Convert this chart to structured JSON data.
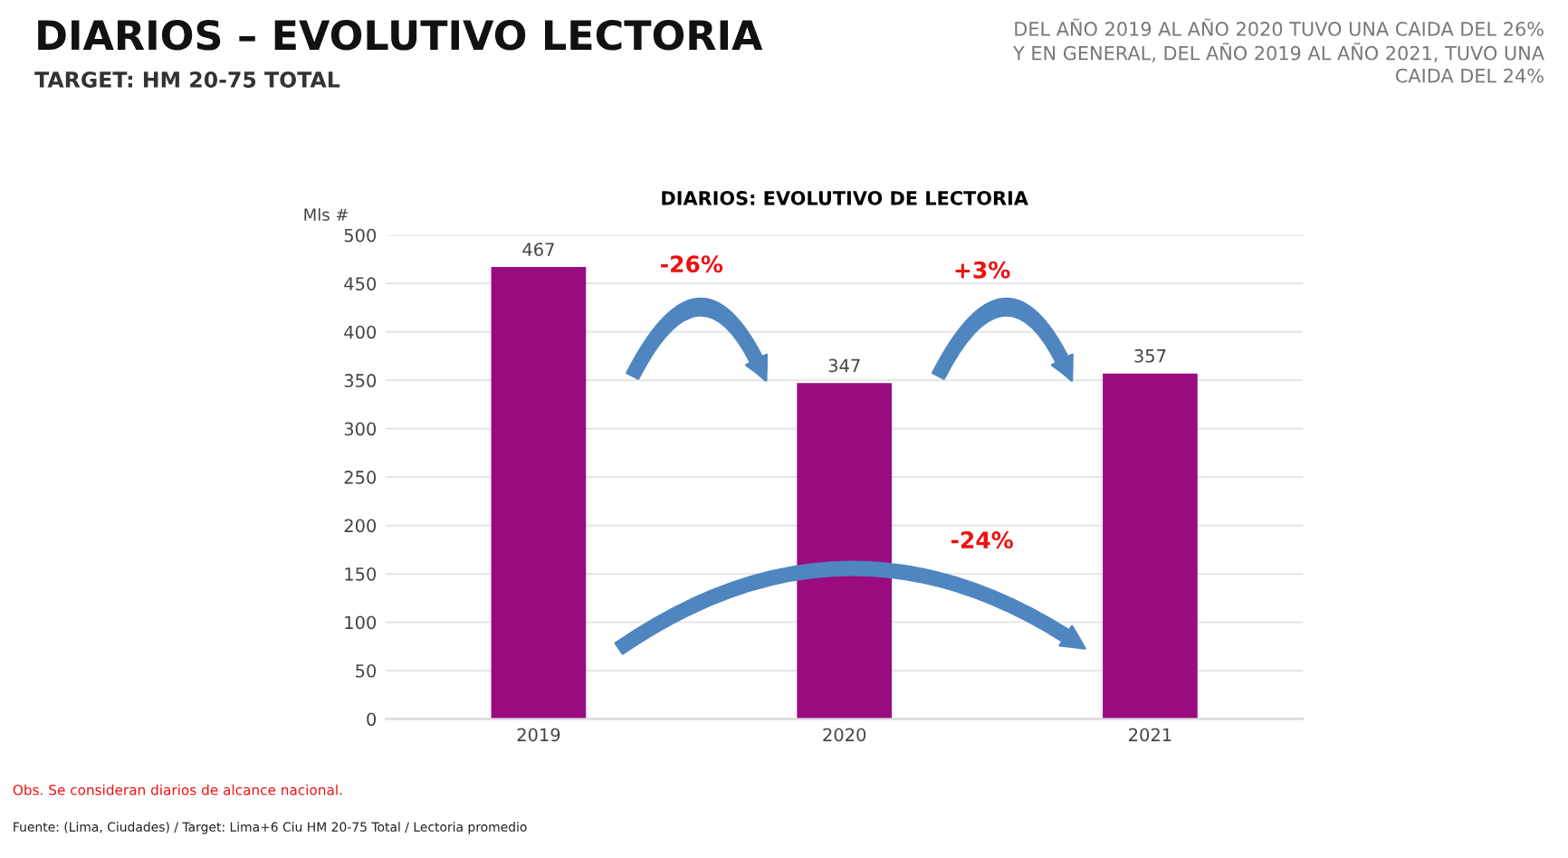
{
  "chart_data": {
    "type": "bar",
    "title": "DIARIOS: EVOLUTIVO DE LECTORIA",
    "ylabel": "Mls #",
    "categories": [
      "2019",
      "2020",
      "2021"
    ],
    "values": [
      467,
      347,
      357
    ],
    "color": "#9b0b80",
    "ylim": [
      0,
      500
    ],
    "yticks": [
      0,
      50,
      100,
      150,
      200,
      250,
      300,
      350,
      400,
      450,
      500
    ],
    "grid": "y",
    "data_labels": true,
    "annotations": [
      "DIARIOS – EVOLUTIVO LECTORIA",
      "TARGET: HM 20-75 TOTAL",
      "DEL AÑO 2019 AL AÑO 2020 TUVO UNA CAIDA DEL 26%\nY EN GENERAL, DEL AÑO 2019 AL AÑO 2021, TUVO UNA\nCAIDA DEL 24%",
      "-26%",
      "+3%",
      "-24%",
      "Obs. Se consideran diarios de alcance nacional.",
      "Fuente: (Lima, Ciudades) / Target: Lima+6 Ciu HM 20-75 Total / Lectoria promedio"
    ]
  }
}
